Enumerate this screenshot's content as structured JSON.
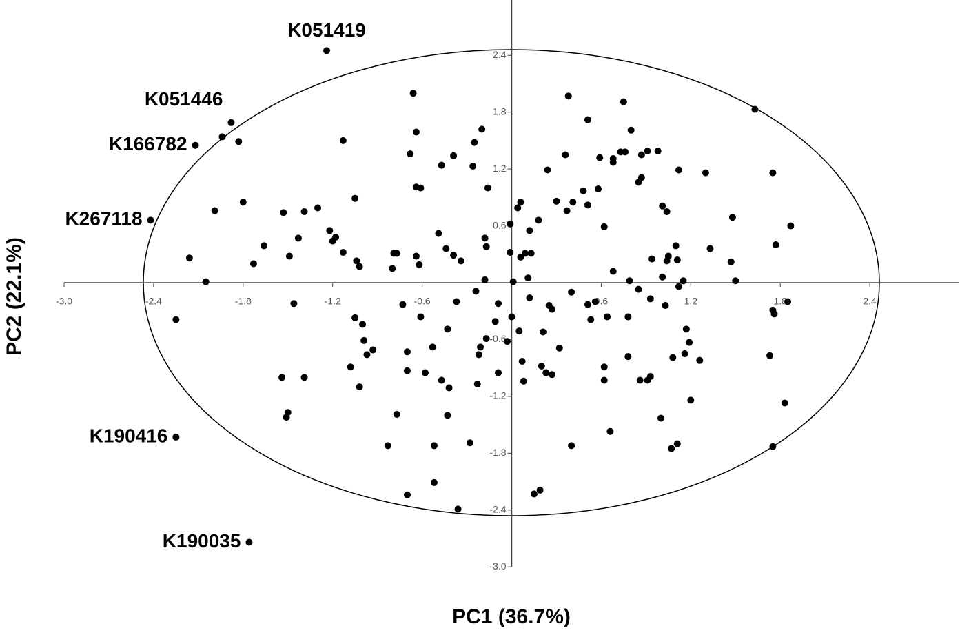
{
  "chart_data": {
    "type": "scatter",
    "x_label": "PC1 (36.7%)",
    "y_label": "PC2 (22.1%)",
    "xlim": [
      -3.0,
      3.0
    ],
    "ylim": [
      -3.0,
      3.0
    ],
    "xticks": [
      {
        "value": -3.0,
        "label": "-3.0"
      },
      -2.4,
      -1.8,
      -1.2,
      -0.6,
      0.6,
      1.2,
      1.8,
      2.4
    ],
    "yticks": [
      2.4,
      1.8,
      1.2,
      0.6,
      -0.6,
      -1.2,
      -1.8,
      -2.4,
      {
        "value": -3.0,
        "label": "-3.0"
      }
    ],
    "color": "#000000",
    "series": [
      {
        "x": [
          -0.66,
          -0.64,
          -0.68,
          -0.47,
          -0.39,
          -0.64,
          -0.61,
          -0.25,
          -0.2,
          -0.26,
          -0.16,
          -1.13,
          -1.83,
          -1.94,
          -1.05,
          -1.8,
          -1.99,
          -1.53,
          -1.39,
          -1.3,
          -1.22,
          -1.18,
          -1.2,
          -1.43,
          -1.66,
          -1.13,
          -1.04,
          -1.02,
          -1.49,
          -1.73,
          -2.16,
          -2.05,
          -0.49,
          -0.44,
          -0.39,
          -0.79,
          -0.77,
          -0.64,
          -0.62,
          -0.8,
          -0.34,
          -0.18,
          -0.17,
          -0.18,
          -0.01,
          -0.01,
          0.04,
          0.06,
          0.06,
          0.09,
          0.13,
          0.12,
          0.18,
          0.11,
          0.01,
          0.24,
          0.36,
          0.38,
          0.51,
          0.3,
          0.37,
          0.41,
          0.48,
          0.51,
          0.58,
          0.59,
          0.68,
          0.68,
          0.73,
          0.76,
          0.75,
          0.8,
          0.87,
          0.91,
          0.98,
          0.87,
          0.85,
          0.62,
          1.01,
          1.04,
          1.1,
          1.05,
          1.04,
          1.11,
          0.94,
          0.68,
          0.79,
          0.85,
          0.93,
          1.01,
          1.12,
          1.15,
          1.03,
          1.12,
          1.3,
          1.48,
          1.33,
          1.47,
          1.5,
          1.63,
          1.75,
          1.77,
          1.87,
          1.85,
          1.75,
          1.76,
          1.73,
          1.83,
          1.75,
          1.17,
          1.19,
          1.16,
          1.08,
          1.26,
          1.2,
          1.0,
          1.11,
          1.07,
          0.78,
          0.86,
          0.91,
          0.93,
          0.78,
          0.62,
          0.62,
          0.66,
          0.4,
          0.53,
          0.51,
          0.56,
          0.64,
          0.4,
          0.27,
          0.25,
          0.32,
          0.21,
          0.2,
          0.23,
          0.27,
          0.07,
          0.08,
          0.05,
          0.0,
          -0.03,
          0.12,
          0.19,
          0.15,
          -0.09,
          -0.11,
          -0.09,
          -0.21,
          -0.17,
          -0.24,
          -0.22,
          -0.23,
          -0.28,
          -0.36,
          -0.43,
          -0.37,
          -0.61,
          -0.73,
          -0.53,
          -0.58,
          -0.47,
          -0.42,
          -0.43,
          -0.52,
          -0.52,
          -0.7,
          -0.83,
          -0.77,
          -0.7,
          -0.7,
          -1.05,
          -1.0,
          -0.99,
          -0.93,
          -0.97,
          -1.08,
          -1.02,
          -1.46,
          -1.54,
          -1.39,
          -1.5,
          -1.51,
          -2.25
        ],
        "values": [
          2.0,
          1.59,
          1.36,
          1.24,
          1.34,
          1.01,
          1.0,
          1.48,
          1.62,
          1.23,
          1.0,
          1.5,
          1.49,
          1.54,
          0.89,
          0.85,
          0.76,
          0.74,
          0.75,
          0.79,
          0.55,
          0.48,
          0.44,
          0.47,
          0.39,
          0.32,
          0.23,
          0.17,
          0.28,
          0.2,
          0.26,
          0.01,
          0.52,
          0.36,
          0.29,
          0.31,
          0.31,
          0.28,
          0.19,
          0.15,
          0.23,
          0.47,
          0.38,
          0.03,
          0.32,
          0.62,
          0.79,
          0.85,
          0.27,
          0.31,
          0.31,
          0.55,
          0.66,
          0.05,
          0.01,
          1.19,
          1.35,
          1.97,
          1.72,
          0.86,
          0.76,
          0.85,
          0.97,
          0.82,
          0.99,
          1.32,
          1.31,
          1.27,
          1.38,
          1.38,
          1.91,
          1.61,
          1.35,
          1.39,
          1.39,
          1.11,
          1.06,
          0.59,
          0.81,
          0.75,
          0.39,
          0.28,
          0.23,
          0.24,
          0.25,
          0.12,
          0.02,
          -0.07,
          -0.17,
          0.06,
          -0.04,
          0.02,
          -0.24,
          1.19,
          1.16,
          0.69,
          0.36,
          0.22,
          0.02,
          1.83,
          1.16,
          0.4,
          0.6,
          -0.2,
          -0.29,
          -0.33,
          -0.77,
          -1.27,
          -1.73,
          -0.49,
          -0.63,
          -0.75,
          -0.79,
          -0.82,
          -1.24,
          -1.43,
          -1.7,
          -1.75,
          -0.78,
          -1.03,
          -1.03,
          -0.99,
          -0.36,
          -0.89,
          -1.03,
          -1.57,
          -1.72,
          -0.39,
          -0.23,
          -0.2,
          -0.36,
          -0.1,
          -0.28,
          -0.24,
          -0.69,
          -0.52,
          -0.88,
          -0.95,
          -0.97,
          -0.83,
          -1.04,
          -0.51,
          -0.36,
          -0.62,
          -0.16,
          -2.19,
          -2.23,
          -0.22,
          -0.41,
          -0.95,
          -0.68,
          -0.59,
          -0.09,
          -0.76,
          -1.07,
          -1.69,
          -2.39,
          -0.49,
          -0.2,
          -0.36,
          -0.23,
          -0.68,
          -0.95,
          -1.03,
          -1.11,
          -1.4,
          -1.72,
          -2.11,
          -2.24,
          -1.72,
          -1.39,
          -0.73,
          -0.93,
          -0.37,
          -0.44,
          -0.61,
          -0.71,
          -0.76,
          -0.89,
          -1.1,
          -0.22,
          -1.0,
          -1.0,
          -1.37,
          -1.42,
          -0.39
        ]
      }
    ],
    "annotations": [
      {
        "text": "K051419",
        "x": -1.24,
        "y": 2.45
      },
      {
        "text": "K051446",
        "x": -1.88,
        "y": 1.69
      },
      {
        "text": "K166782",
        "x": -2.12,
        "y": 1.45
      },
      {
        "text": "K267118",
        "x": -2.42,
        "y": 0.66
      },
      {
        "text": "K190416",
        "x": -2.25,
        "y": -1.63
      },
      {
        "text": "K190035",
        "x": -1.76,
        "y": -2.74
      }
    ]
  }
}
